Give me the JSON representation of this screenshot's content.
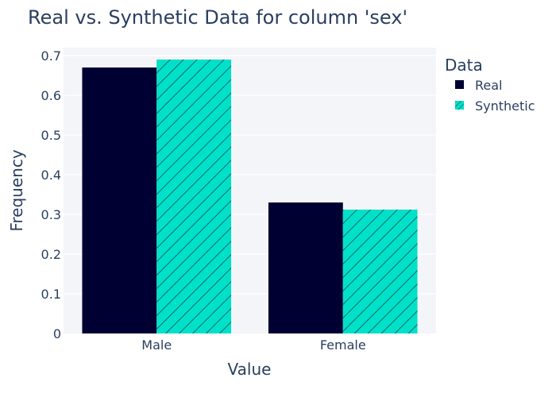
{
  "chart_data": {
    "type": "bar",
    "title": "Real vs. Synthetic Data for column 'sex'",
    "xlabel": "Value",
    "ylabel": "Frequency",
    "categories": [
      "Male",
      "Female"
    ],
    "ylim": [
      0,
      0.72
    ],
    "yticks": [
      0,
      0.1,
      0.2,
      0.3,
      0.4,
      0.5,
      0.6,
      0.7
    ],
    "ytick_labels": [
      "0",
      "0.1",
      "0.2",
      "0.3",
      "0.4",
      "0.5",
      "0.6",
      "0.7"
    ],
    "grid": true,
    "legend": {
      "title": "Data",
      "position": "right"
    },
    "series": [
      {
        "name": "Real",
        "values": [
          0.67,
          0.33
        ],
        "color": "#000033",
        "pattern": "solid"
      },
      {
        "name": "Synthetic",
        "values": [
          0.69,
          0.312
        ],
        "color": "#01e0c9",
        "pattern": "diagonal-hatch"
      }
    ]
  }
}
